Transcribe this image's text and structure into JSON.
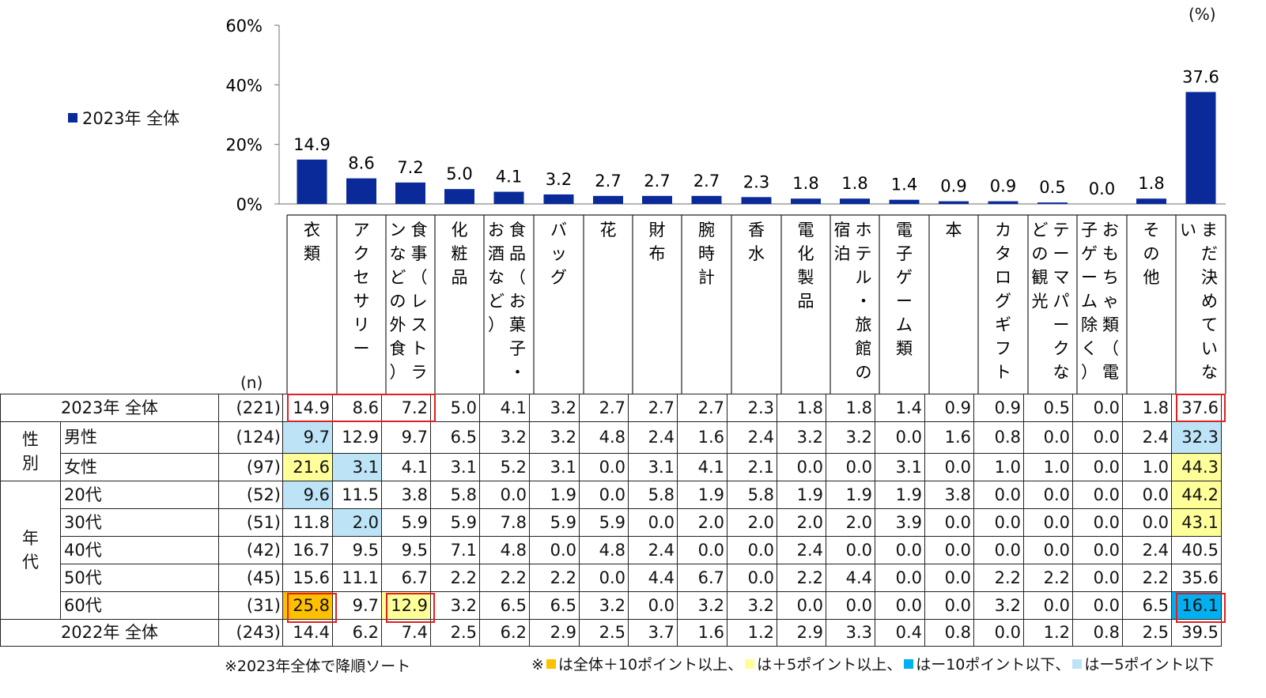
{
  "unit_label": "(%)",
  "n_header": "(n)",
  "chart_data": {
    "type": "bar",
    "legend": "2023年 全体",
    "color": "#0a2a9a",
    "ylim": [
      0,
      60
    ],
    "yticks": [
      "0%",
      "20%",
      "40%",
      "60%"
    ],
    "categories": [
      "衣類",
      "アクセサリー",
      "食事（レストランなどの外食）",
      "化粧品",
      "食品（お菓子・お酒など）",
      "バッグ",
      "花",
      "財布",
      "腕時計",
      "香水",
      "電化製品",
      "ホテル・旅館の宿泊",
      "電子ゲーム類",
      "本",
      "カタログギフト",
      "テーマパークなどの観光",
      "おもちゃ類（電子ゲーム除く）",
      "その他",
      "まだ決めていない"
    ],
    "category_columns": [
      [
        "衣",
        "類"
      ],
      [
        "ア",
        "ク",
        "セ",
        "サ",
        "リ",
        "ー"
      ],
      [
        "食",
        "事",
        "（",
        "レ",
        "ス",
        "ト",
        "ラ"
      ],
      [
        "化",
        "粧",
        "品"
      ],
      [
        "食",
        "品",
        "（",
        "お",
        "菓",
        "子",
        "・"
      ],
      [
        "バ",
        "ッ",
        "グ"
      ],
      [
        "花"
      ],
      [
        "財",
        "布"
      ],
      [
        "腕",
        "時",
        "計"
      ],
      [
        "香",
        "水"
      ],
      [
        "電",
        "化",
        "製",
        "品"
      ],
      [
        "ホ",
        "テ",
        "ル",
        "・",
        "旅",
        "館",
        "の"
      ],
      [
        "電",
        "子",
        "ゲ",
        "ー",
        "ム",
        "類"
      ],
      [
        "本"
      ],
      [
        "カ",
        "タ",
        "ロ",
        "グ",
        "ギ",
        "フ",
        "ト"
      ],
      [
        "テ",
        "ー",
        "マ",
        "パ",
        "ー",
        "ク",
        "な"
      ],
      [
        "お",
        "も",
        "ち",
        "ゃ",
        "類",
        "（",
        "電"
      ],
      [
        "そ",
        "の",
        "他"
      ],
      [
        "ま",
        "だ",
        "決",
        "め",
        "て",
        "い",
        "な"
      ]
    ],
    "category_columns2": [
      [],
      [],
      [
        "ン",
        "な",
        "ど",
        "の",
        "外",
        "食",
        "）"
      ],
      [],
      [
        "お",
        "酒",
        "な",
        "ど",
        "）"
      ],
      [],
      [],
      [],
      [],
      [],
      [],
      [
        "宿",
        "泊"
      ],
      [],
      [],
      [],
      [
        "ど",
        "の",
        "観",
        "光"
      ],
      [
        "子",
        "ゲ",
        "ー",
        "ム",
        "除",
        "く",
        "）"
      ],
      [],
      [
        "い"
      ]
    ],
    "values": [
      14.9,
      8.6,
      7.2,
      5.0,
      4.1,
      3.2,
      2.7,
      2.7,
      2.7,
      2.3,
      1.8,
      1.8,
      1.4,
      0.9,
      0.9,
      0.5,
      0.0,
      1.8,
      37.6
    ],
    "value_labels": [
      "14.9",
      "8.6",
      "7.2",
      "5.0",
      "4.1",
      "3.2",
      "2.7",
      "2.7",
      "2.7",
      "2.3",
      "1.8",
      "1.8",
      "1.4",
      "0.9",
      "0.9",
      "0.5",
      "0.0",
      "1.8",
      "37.6"
    ]
  },
  "table": {
    "rows": [
      {
        "group": "",
        "label": "2023年 全体",
        "n": "(221)",
        "values": [
          "14.9",
          "8.6",
          "7.2",
          "5.0",
          "4.1",
          "3.2",
          "2.7",
          "2.7",
          "2.7",
          "2.3",
          "1.8",
          "1.8",
          "1.4",
          "0.9",
          "0.9",
          "0.5",
          "0.0",
          "1.8",
          "37.6"
        ],
        "hl": {}
      },
      {
        "group": "性別",
        "label": "男性",
        "n": "(124)",
        "values": [
          "9.7",
          "12.9",
          "9.7",
          "6.5",
          "3.2",
          "3.2",
          "4.8",
          "2.4",
          "1.6",
          "2.4",
          "3.2",
          "3.2",
          "0.0",
          "1.6",
          "0.8",
          "0.0",
          "0.0",
          "2.4",
          "32.3"
        ],
        "hl": {
          "0": "lblue",
          "18": "lblue"
        }
      },
      {
        "group": "性別",
        "label": "女性",
        "n": "(97)",
        "values": [
          "21.6",
          "3.1",
          "4.1",
          "3.1",
          "5.2",
          "3.1",
          "0.0",
          "3.1",
          "4.1",
          "2.1",
          "0.0",
          "0.0",
          "3.1",
          "0.0",
          "1.0",
          "1.0",
          "0.0",
          "1.0",
          "44.3"
        ],
        "hl": {
          "0": "yellow",
          "1": "lblue",
          "18": "yellow"
        }
      },
      {
        "group": "年代",
        "label": "20代",
        "n": "(52)",
        "values": [
          "9.6",
          "11.5",
          "3.8",
          "5.8",
          "0.0",
          "1.9",
          "0.0",
          "5.8",
          "1.9",
          "5.8",
          "1.9",
          "1.9",
          "1.9",
          "3.8",
          "0.0",
          "0.0",
          "0.0",
          "0.0",
          "44.2"
        ],
        "hl": {
          "0": "lblue",
          "18": "yellow"
        }
      },
      {
        "group": "年代",
        "label": "30代",
        "n": "(51)",
        "values": [
          "11.8",
          "2.0",
          "5.9",
          "5.9",
          "7.8",
          "5.9",
          "5.9",
          "0.0",
          "2.0",
          "2.0",
          "2.0",
          "2.0",
          "3.9",
          "0.0",
          "0.0",
          "0.0",
          "0.0",
          "0.0",
          "43.1"
        ],
        "hl": {
          "1": "lblue",
          "18": "yellow"
        }
      },
      {
        "group": "年代",
        "label": "40代",
        "n": "(42)",
        "values": [
          "16.7",
          "9.5",
          "9.5",
          "7.1",
          "4.8",
          "0.0",
          "4.8",
          "2.4",
          "0.0",
          "0.0",
          "2.4",
          "0.0",
          "0.0",
          "0.0",
          "0.0",
          "0.0",
          "0.0",
          "2.4",
          "40.5"
        ],
        "hl": {}
      },
      {
        "group": "年代",
        "label": "50代",
        "n": "(45)",
        "values": [
          "15.6",
          "11.1",
          "6.7",
          "2.2",
          "2.2",
          "2.2",
          "0.0",
          "4.4",
          "6.7",
          "0.0",
          "2.2",
          "4.4",
          "0.0",
          "0.0",
          "2.2",
          "2.2",
          "0.0",
          "2.2",
          "35.6"
        ],
        "hl": {}
      },
      {
        "group": "年代",
        "label": "60代",
        "n": "(31)",
        "values": [
          "25.8",
          "9.7",
          "12.9",
          "3.2",
          "6.5",
          "6.5",
          "3.2",
          "0.0",
          "3.2",
          "3.2",
          "0.0",
          "0.0",
          "0.0",
          "0.0",
          "3.2",
          "0.0",
          "0.0",
          "6.5",
          "16.1"
        ],
        "hl": {
          "0": "orange",
          "2": "yellow",
          "18": "blue"
        }
      },
      {
        "group": "",
        "label": "2022年 全体",
        "n": "(243)",
        "values": [
          "14.4",
          "6.2",
          "7.4",
          "2.5",
          "6.2",
          "2.9",
          "2.5",
          "3.7",
          "1.6",
          "1.2",
          "2.9",
          "3.3",
          "0.4",
          "0.8",
          "0.0",
          "1.2",
          "0.8",
          "2.5",
          "39.5"
        ],
        "hl": {}
      }
    ],
    "group_labels": {
      "gender": [
        "性",
        "別"
      ],
      "age": [
        "年",
        "代"
      ]
    }
  },
  "footnote_sort": "※2023年全体で降順ソート",
  "footnote_legend": {
    "prefix": "※",
    "items": [
      {
        "color": "#ffc000",
        "text": "は全体＋10ポイント以上、"
      },
      {
        "color": "#ffff99",
        "text": "は＋5ポイント以上、"
      },
      {
        "color": "#00b0f0",
        "text": "はー10ポイント以下、"
      },
      {
        "color": "#bde3f7",
        "text": "はー5ポイント以下"
      }
    ]
  }
}
